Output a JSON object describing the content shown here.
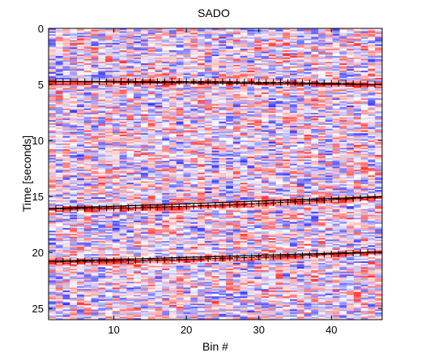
{
  "chart_data": {
    "type": "heatmap",
    "title": "SADO",
    "xlabel": "Bin #",
    "ylabel": "Time [seconds]",
    "xlim": [
      1,
      47
    ],
    "ylim": [
      26,
      0
    ],
    "y_inverted": true,
    "x_ticks": [
      10,
      20,
      30,
      40
    ],
    "y_ticks": [
      0,
      5,
      10,
      15,
      20,
      25
    ],
    "colormap": {
      "negative": "#0000ff",
      "zero": "#ffffff",
      "positive": "#ff0000"
    },
    "marker_color": "#000000",
    "series": [
      {
        "x": [
          1,
          2,
          3,
          4,
          5,
          6,
          7,
          8,
          9,
          10,
          11,
          12,
          13,
          14,
          15,
          16,
          17,
          18,
          19,
          20,
          21,
          22,
          23,
          24,
          25,
          26,
          27,
          28,
          29,
          30,
          31,
          32,
          33,
          34,
          35,
          36,
          37,
          38,
          39,
          40,
          41,
          42,
          43,
          44,
          45,
          46,
          47
        ],
        "y": [
          4.75,
          4.75,
          4.75,
          4.74,
          4.74,
          4.74,
          4.74,
          4.74,
          4.74,
          4.74,
          4.74,
          4.74,
          4.74,
          4.74,
          4.74,
          4.74,
          4.74,
          4.74,
          4.74,
          4.74,
          4.75,
          4.75,
          4.76,
          4.76,
          4.77,
          4.77,
          4.78,
          4.79,
          4.79,
          4.8,
          4.81,
          4.81,
          4.82,
          4.83,
          4.84,
          4.85,
          4.86,
          4.87,
          4.88,
          4.89,
          4.9,
          4.92,
          4.94,
          4.96,
          4.98,
          5.0,
          5.02
        ]
      },
      {
        "x": [
          1,
          2,
          3,
          4,
          5,
          6,
          7,
          8,
          9,
          10,
          11,
          12,
          13,
          14,
          15,
          16,
          17,
          18,
          19,
          20,
          21,
          22,
          23,
          24,
          25,
          26,
          27,
          28,
          29,
          30,
          31,
          32,
          33,
          34,
          35,
          36,
          37,
          38,
          39,
          40,
          41,
          42,
          43,
          44,
          45,
          46,
          47
        ],
        "y": [
          16.1,
          16.1,
          16.1,
          16.09,
          16.08,
          16.08,
          16.07,
          16.06,
          16.05,
          16.04,
          16.03,
          16.02,
          16.0,
          15.99,
          15.97,
          15.96,
          15.94,
          15.92,
          15.9,
          15.88,
          15.86,
          15.84,
          15.82,
          15.79,
          15.77,
          15.74,
          15.72,
          15.69,
          15.66,
          15.63,
          15.6,
          15.57,
          15.54,
          15.51,
          15.48,
          15.44,
          15.41,
          15.37,
          15.34,
          15.3,
          15.26,
          15.23,
          15.19,
          15.15,
          15.11,
          15.07,
          15.02
        ]
      },
      {
        "x": [
          1,
          2,
          3,
          4,
          5,
          6,
          7,
          8,
          9,
          10,
          11,
          12,
          13,
          14,
          15,
          16,
          17,
          18,
          19,
          20,
          21,
          22,
          23,
          24,
          25,
          26,
          27,
          28,
          29,
          30,
          31,
          32,
          33,
          34,
          35,
          36,
          37,
          38,
          39,
          40,
          41,
          42,
          43,
          44,
          45,
          46,
          47
        ],
        "y": [
          20.8,
          20.8,
          20.8,
          20.79,
          20.79,
          20.78,
          20.77,
          20.77,
          20.76,
          20.75,
          20.74,
          20.73,
          20.72,
          20.7,
          20.69,
          20.68,
          20.66,
          20.65,
          20.63,
          20.61,
          20.6,
          20.58,
          20.56,
          20.54,
          20.52,
          20.5,
          20.48,
          20.46,
          20.44,
          20.41,
          20.39,
          20.37,
          20.34,
          20.32,
          20.29,
          20.26,
          20.24,
          20.21,
          20.18,
          20.15,
          20.12,
          20.09,
          20.06,
          20.03,
          20.0,
          19.97,
          19.94
        ]
      }
    ],
    "horizontal_lines": [
      {
        "x_range": [
          1,
          47
        ],
        "y": [
          4.72,
          5.02
        ]
      },
      {
        "x_range": [
          1,
          47
        ],
        "y": [
          16.1,
          15.02
        ]
      },
      {
        "x_range": [
          1,
          47
        ],
        "y": [
          20.8,
          19.94
        ]
      }
    ]
  }
}
